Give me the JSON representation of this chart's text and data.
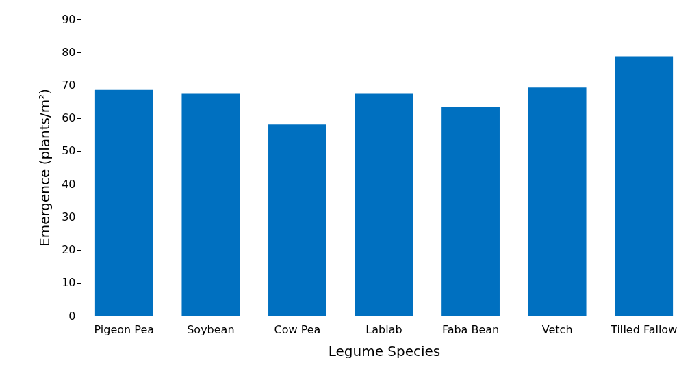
{
  "chart_data": {
    "type": "bar",
    "xlabel": "Legume Species",
    "ylabel": "Emergence (plants/m²)",
    "categories": [
      "Pigeon Pea",
      "Soybean",
      "Cow Pea",
      "Lablab",
      "Faba Bean",
      "Vetch",
      "Tilled Fallow"
    ],
    "values": [
      68.7,
      67.5,
      58,
      67.5,
      63.4,
      69.2,
      78.7
    ],
    "color": "#0070c0",
    "ylim": [
      0,
      90
    ],
    "yticks": [
      0,
      10,
      20,
      30,
      40,
      50,
      60,
      70,
      80,
      90
    ],
    "grid": false
  }
}
